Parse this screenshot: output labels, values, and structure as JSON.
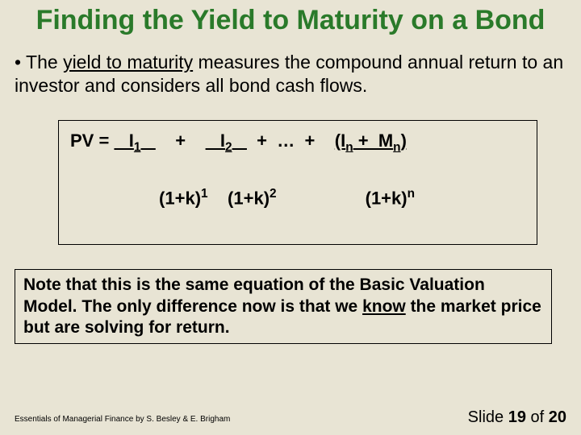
{
  "colors": {
    "background": "#e8e4d4",
    "title": "#2a7a2a",
    "text": "#000000",
    "border": "#000000"
  },
  "title": "Finding the Yield to Maturity on a Bond",
  "bullet": {
    "prefix": "• The ",
    "underlined": "yield to maturity",
    "rest": " measures the compound annual return to an investor and considers all bond cash flows."
  },
  "formula": {
    "pv_label": "PV  =",
    "term1_num_lead": "   I",
    "term1_num_sub": "1",
    "term1_num_trail": "   ",
    "plus1": "   +   ",
    "term2_num_lead": "   I",
    "term2_num_sub": "2",
    "term2_num_trail": "   ",
    "plus_dots": " +  …  +   ",
    "termn_open": "(I",
    "termn_sub1": "n",
    "termn_mid": " +  M",
    "termn_sub2": "n",
    "termn_close": ")",
    "den_indent": "            ",
    "den1_base": "(1+k)",
    "den1_exp": "1",
    "den_gap1": "    ",
    "den2_base": "(1+k)",
    "den2_exp": "2",
    "den_gap2": "                  ",
    "denn_base": "(1+k)",
    "denn_exp": "n"
  },
  "note": {
    "part1": "Note that this is the same equation of the Basic Valuation Model.  The only difference now is that we ",
    "underlined": "know",
    "part2": " the market price but are solving for return."
  },
  "footer": {
    "left": "Essentials of Managerial Finance by S. Besley & E. Brigham",
    "right_prefix": "Slide ",
    "current": "19",
    "of": " of ",
    "total": "20"
  }
}
